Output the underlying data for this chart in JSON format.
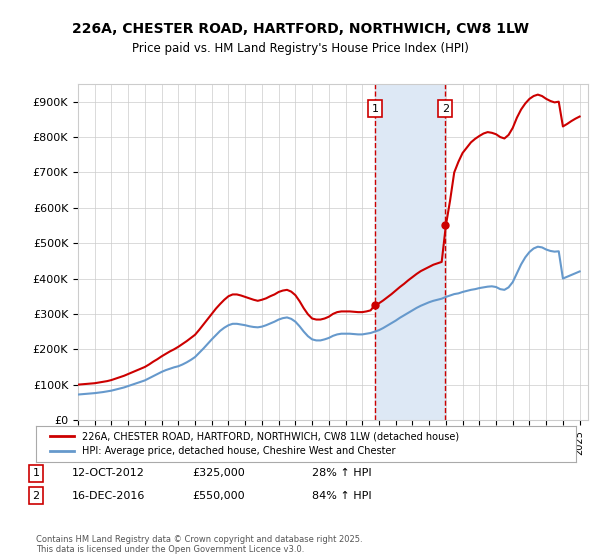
{
  "title": "226A, CHESTER ROAD, HARTFORD, NORTHWICH, CW8 1LW",
  "subtitle": "Price paid vs. HM Land Registry's House Price Index (HPI)",
  "ylabel_ticks": [
    "£0",
    "£100K",
    "£200K",
    "£300K",
    "£400K",
    "£500K",
    "£600K",
    "£700K",
    "£800K",
    "£900K"
  ],
  "ytick_values": [
    0,
    100000,
    200000,
    300000,
    400000,
    500000,
    600000,
    700000,
    800000,
    900000
  ],
  "ylim": [
    0,
    950000
  ],
  "xlim_start": 1995.0,
  "xlim_end": 2025.5,
  "red_color": "#cc0000",
  "blue_color": "#6699cc",
  "shaded_color": "#dde8f5",
  "grid_color": "#cccccc",
  "bg_color": "#ffffff",
  "transaction1_x": 2012.78,
  "transaction1_y": 325000,
  "transaction1_label": "1",
  "transaction1_date": "12-OCT-2012",
  "transaction1_price": "£325,000",
  "transaction1_hpi": "28% ↑ HPI",
  "transaction2_x": 2016.96,
  "transaction2_y": 550000,
  "transaction2_label": "2",
  "transaction2_date": "16-DEC-2016",
  "transaction2_price": "£550,000",
  "transaction2_hpi": "84% ↑ HPI",
  "legend_line1": "226A, CHESTER ROAD, HARTFORD, NORTHWICH, CW8 1LW (detached house)",
  "legend_line2": "HPI: Average price, detached house, Cheshire West and Chester",
  "footer": "Contains HM Land Registry data © Crown copyright and database right 2025.\nThis data is licensed under the Open Government Licence v3.0.",
  "hpi_years": [
    1995.0,
    1995.25,
    1995.5,
    1995.75,
    1996.0,
    1996.25,
    1996.5,
    1996.75,
    1997.0,
    1997.25,
    1997.5,
    1997.75,
    1998.0,
    1998.25,
    1998.5,
    1998.75,
    1999.0,
    1999.25,
    1999.5,
    1999.75,
    2000.0,
    2000.25,
    2000.5,
    2000.75,
    2001.0,
    2001.25,
    2001.5,
    2001.75,
    2002.0,
    2002.25,
    2002.5,
    2002.75,
    2003.0,
    2003.25,
    2003.5,
    2003.75,
    2004.0,
    2004.25,
    2004.5,
    2004.75,
    2005.0,
    2005.25,
    2005.5,
    2005.75,
    2006.0,
    2006.25,
    2006.5,
    2006.75,
    2007.0,
    2007.25,
    2007.5,
    2007.75,
    2008.0,
    2008.25,
    2008.5,
    2008.75,
    2009.0,
    2009.25,
    2009.5,
    2009.75,
    2010.0,
    2010.25,
    2010.5,
    2010.75,
    2011.0,
    2011.25,
    2011.5,
    2011.75,
    2012.0,
    2012.25,
    2012.5,
    2012.75,
    2013.0,
    2013.25,
    2013.5,
    2013.75,
    2014.0,
    2014.25,
    2014.5,
    2014.75,
    2015.0,
    2015.25,
    2015.5,
    2015.75,
    2016.0,
    2016.25,
    2016.5,
    2016.75,
    2017.0,
    2017.25,
    2017.5,
    2017.75,
    2018.0,
    2018.25,
    2018.5,
    2018.75,
    2019.0,
    2019.25,
    2019.5,
    2019.75,
    2020.0,
    2020.25,
    2020.5,
    2020.75,
    2021.0,
    2021.25,
    2021.5,
    2021.75,
    2022.0,
    2022.25,
    2022.5,
    2022.75,
    2023.0,
    2023.25,
    2023.5,
    2023.75,
    2024.0,
    2024.25,
    2024.5,
    2024.75,
    2025.0
  ],
  "hpi_values": [
    72000,
    73000,
    74000,
    75000,
    76000,
    77500,
    79000,
    81000,
    83000,
    86000,
    89000,
    92000,
    96000,
    100000,
    104000,
    108000,
    112000,
    118000,
    124000,
    130000,
    136000,
    141000,
    145000,
    149000,
    152000,
    157000,
    163000,
    170000,
    178000,
    190000,
    202000,
    215000,
    228000,
    240000,
    252000,
    261000,
    268000,
    272000,
    272000,
    270000,
    268000,
    265000,
    263000,
    262000,
    264000,
    268000,
    273000,
    278000,
    284000,
    288000,
    290000,
    286000,
    278000,
    265000,
    250000,
    237000,
    228000,
    225000,
    225000,
    228000,
    232000,
    238000,
    242000,
    244000,
    244000,
    244000,
    243000,
    242000,
    242000,
    244000,
    246000,
    250000,
    254000,
    260000,
    267000,
    274000,
    281000,
    289000,
    296000,
    303000,
    310000,
    317000,
    323000,
    328000,
    333000,
    337000,
    340000,
    343000,
    348000,
    352000,
    356000,
    358000,
    362000,
    365000,
    368000,
    370000,
    373000,
    375000,
    377000,
    378000,
    376000,
    370000,
    368000,
    375000,
    390000,
    415000,
    440000,
    460000,
    475000,
    485000,
    490000,
    488000,
    482000,
    478000,
    476000,
    477000,
    400000,
    405000,
    410000,
    415000,
    420000
  ],
  "red_years": [
    1995.0,
    1995.25,
    1995.5,
    1995.75,
    1996.0,
    1996.25,
    1996.5,
    1996.75,
    1997.0,
    1997.25,
    1997.5,
    1997.75,
    1998.0,
    1998.25,
    1998.5,
    1998.75,
    1999.0,
    1999.25,
    1999.5,
    1999.75,
    2000.0,
    2000.25,
    2000.5,
    2000.75,
    2001.0,
    2001.25,
    2001.5,
    2001.75,
    2002.0,
    2002.25,
    2002.5,
    2002.75,
    2003.0,
    2003.25,
    2003.5,
    2003.75,
    2004.0,
    2004.25,
    2004.5,
    2004.75,
    2005.0,
    2005.25,
    2005.5,
    2005.75,
    2006.0,
    2006.25,
    2006.5,
    2006.75,
    2007.0,
    2007.25,
    2007.5,
    2007.75,
    2008.0,
    2008.25,
    2008.5,
    2008.75,
    2009.0,
    2009.25,
    2009.5,
    2009.75,
    2010.0,
    2010.25,
    2010.5,
    2010.75,
    2011.0,
    2011.25,
    2011.5,
    2011.75,
    2012.0,
    2012.25,
    2012.5,
    2012.75,
    2013.0,
    2013.25,
    2013.5,
    2013.75,
    2014.0,
    2014.25,
    2014.5,
    2014.75,
    2015.0,
    2015.25,
    2015.5,
    2015.75,
    2016.0,
    2016.25,
    2016.5,
    2016.75,
    2017.0,
    2017.25,
    2017.5,
    2017.75,
    2018.0,
    2018.25,
    2018.5,
    2018.75,
    2019.0,
    2019.25,
    2019.5,
    2019.75,
    2020.0,
    2020.25,
    2020.5,
    2020.75,
    2021.0,
    2021.25,
    2021.5,
    2021.75,
    2022.0,
    2022.25,
    2022.5,
    2022.75,
    2023.0,
    2023.25,
    2023.5,
    2023.75,
    2024.0,
    2024.25,
    2024.5,
    2024.75,
    2025.0
  ],
  "red_values": [
    100000,
    101000,
    102000,
    103000,
    104000,
    106000,
    108000,
    110000,
    113000,
    117000,
    121000,
    125000,
    130000,
    135000,
    140000,
    145000,
    150000,
    157000,
    165000,
    172000,
    180000,
    187000,
    194000,
    200000,
    207000,
    215000,
    223000,
    232000,
    241000,
    255000,
    270000,
    285000,
    300000,
    315000,
    328000,
    340000,
    350000,
    355000,
    355000,
    352000,
    348000,
    344000,
    340000,
    337000,
    340000,
    344000,
    350000,
    355000,
    362000,
    366000,
    368000,
    363000,
    353000,
    336000,
    316000,
    299000,
    287000,
    284000,
    284000,
    287000,
    292000,
    300000,
    305000,
    307000,
    307000,
    307000,
    306000,
    305000,
    305000,
    307000,
    310000,
    325000,
    330000,
    338000,
    347000,
    356000,
    366000,
    376000,
    385000,
    395000,
    404000,
    413000,
    421000,
    427000,
    433000,
    439000,
    443000,
    447000,
    550000,
    620000,
    700000,
    730000,
    755000,
    770000,
    785000,
    795000,
    803000,
    810000,
    814000,
    812000,
    808000,
    800000,
    796000,
    806000,
    826000,
    855000,
    878000,
    895000,
    908000,
    916000,
    920000,
    916000,
    908000,
    902000,
    898000,
    900000,
    830000,
    837000,
    845000,
    852000,
    858000
  ]
}
